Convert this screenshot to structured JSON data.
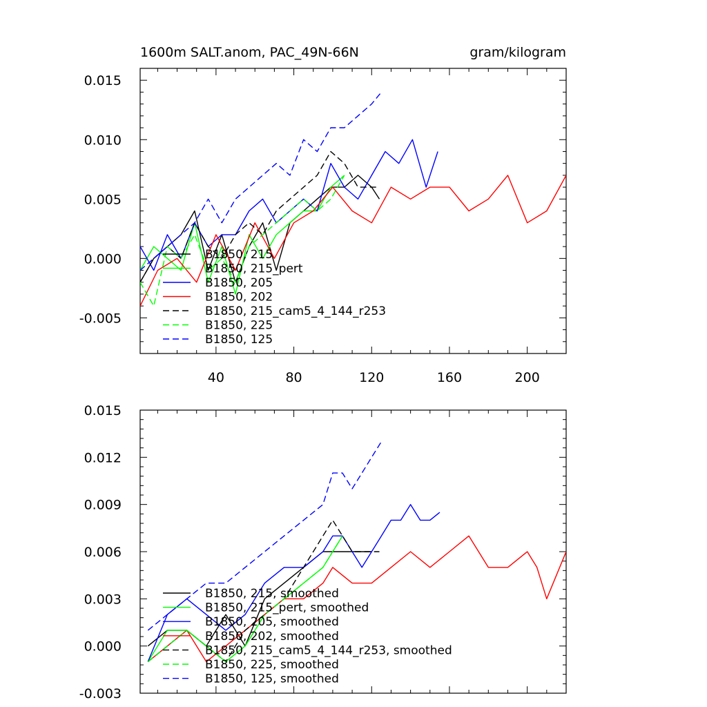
{
  "chart_data": [
    {
      "type": "line",
      "title": "1600m SALT.anom, PAC_49N-66N",
      "units": "gram/kilogram",
      "xlim": [
        1,
        220
      ],
      "ylim": [
        -0.008,
        0.016
      ],
      "xticks": [
        40,
        80,
        120,
        160,
        200
      ],
      "yticks": [
        -0.005,
        0.0,
        0.005,
        0.01,
        0.015
      ],
      "ytick_labels": [
        "-0.005",
        "0.000",
        "0.005",
        "0.010",
        "0.015"
      ],
      "legend_position": "lower-left, overlapping data",
      "series": [
        {
          "name": "B1850, 215",
          "color": "#000000",
          "dash": "solid",
          "x": [
            1,
            8,
            15,
            22,
            29,
            36,
            43,
            50,
            57,
            64,
            71,
            78,
            85,
            92,
            99,
            106,
            113,
            120,
            124
          ],
          "y": [
            -0.002,
            0.0,
            0.001,
            0.002,
            0.004,
            -0.001,
            0.002,
            -0.002,
            0.001,
            0.003,
            -0.001,
            0.003,
            0.004,
            0.005,
            0.006,
            0.006,
            0.007,
            0.006,
            0.005
          ]
        },
        {
          "name": "B1850, 215_pert",
          "color": "#00ff00",
          "dash": "solid",
          "x": [
            1,
            8,
            15,
            22,
            29,
            36,
            43,
            50,
            57,
            64,
            71,
            78,
            85,
            92,
            99,
            106
          ],
          "y": [
            -0.001,
            0.001,
            0.0,
            -0.001,
            0.003,
            -0.002,
            0.001,
            -0.003,
            0.002,
            0.0,
            0.002,
            0.003,
            0.004,
            0.004,
            0.006,
            0.007
          ]
        },
        {
          "name": "B1850, 205",
          "color": "#0000ff",
          "dash": "solid",
          "x": [
            1,
            8,
            15,
            22,
            29,
            36,
            43,
            50,
            57,
            64,
            71,
            78,
            85,
            92,
            99,
            106,
            113,
            120,
            127,
            134,
            141,
            148,
            154
          ],
          "y": [
            0.001,
            -0.001,
            0.002,
            0.0,
            0.003,
            0.001,
            0.002,
            0.002,
            0.004,
            0.005,
            0.003,
            0.004,
            0.005,
            0.004,
            0.008,
            0.006,
            0.005,
            0.007,
            0.009,
            0.008,
            0.01,
            0.006,
            0.009
          ]
        },
        {
          "name": "B1850, 202",
          "color": "#ff0000",
          "dash": "solid",
          "x": [
            1,
            10,
            20,
            30,
            40,
            50,
            60,
            70,
            80,
            90,
            100,
            110,
            120,
            130,
            140,
            150,
            160,
            170,
            180,
            190,
            200,
            210,
            220
          ],
          "y": [
            -0.004,
            -0.001,
            0.0,
            -0.002,
            0.002,
            -0.001,
            0.003,
            0.0,
            0.003,
            0.004,
            0.006,
            0.004,
            0.003,
            0.006,
            0.005,
            0.006,
            0.006,
            0.004,
            0.005,
            0.007,
            0.003,
            0.004,
            0.007
          ]
        },
        {
          "name": "B1850, 215_cam5_4_144_r253",
          "color": "#000000",
          "dash": "dashed",
          "x": [
            1,
            8,
            15,
            22,
            29,
            36,
            43,
            50,
            57,
            64,
            71,
            78,
            85,
            92,
            99,
            106,
            113,
            120,
            124
          ],
          "y": [
            -0.002,
            0.0,
            0.001,
            0.0,
            0.003,
            0.001,
            0.0,
            0.002,
            0.003,
            0.002,
            0.004,
            0.005,
            0.006,
            0.007,
            0.009,
            0.008,
            0.006,
            0.006,
            0.006
          ]
        },
        {
          "name": "B1850, 225",
          "color": "#00ff00",
          "dash": "dashed",
          "x": [
            1,
            8,
            15,
            22,
            29,
            36,
            43,
            50,
            57,
            64,
            71,
            78,
            85,
            92,
            99,
            106
          ],
          "y": [
            -0.002,
            -0.004,
            0.001,
            0.0,
            0.002,
            -0.001,
            0.0,
            -0.002,
            0.001,
            0.002,
            0.003,
            0.004,
            0.005,
            0.004,
            0.005,
            0.007
          ]
        },
        {
          "name": "B1850, 125",
          "color": "#0000ff",
          "dash": "dashed",
          "x": [
            1,
            8,
            15,
            22,
            29,
            36,
            43,
            50,
            57,
            64,
            71,
            78,
            85,
            92,
            99,
            106,
            113,
            120,
            125
          ],
          "y": [
            -0.001,
            0.0,
            0.001,
            0.002,
            0.003,
            0.005,
            0.003,
            0.005,
            0.006,
            0.007,
            0.008,
            0.007,
            0.01,
            0.009,
            0.011,
            0.011,
            0.012,
            0.013,
            0.014
          ]
        }
      ]
    },
    {
      "type": "line",
      "title": "",
      "xlim": [
        1,
        220
      ],
      "ylim": [
        -0.003,
        0.015
      ],
      "yticks": [
        -0.003,
        0.0,
        0.003,
        0.006,
        0.009,
        0.012,
        0.015
      ],
      "ytick_labels": [
        "-0.003",
        "0.000",
        "0.003",
        "0.006",
        "0.009",
        "0.012",
        "0.015"
      ],
      "legend_position": "lower-left, overlapping data",
      "series": [
        {
          "name": "B1850, 215, smoothed",
          "color": "#000000",
          "dash": "solid",
          "x": [
            5,
            15,
            25,
            35,
            45,
            55,
            65,
            75,
            85,
            95,
            100,
            105,
            110,
            115,
            120
          ],
          "y": [
            0.0,
            0.001,
            0.001,
            0.0,
            0.002,
            0.0,
            0.003,
            0.004,
            0.005,
            0.006,
            0.006,
            0.006,
            0.006,
            0.006,
            0.006
          ]
        },
        {
          "name": "B1850, 215_pert, smoothed",
          "color": "#00ff00",
          "dash": "solid",
          "x": [
            5,
            15,
            25,
            35,
            45,
            55,
            65,
            75,
            85,
            95,
            100,
            105
          ],
          "y": [
            -0.001,
            0.001,
            0.001,
            0.0,
            -0.001,
            0.0,
            0.002,
            0.003,
            0.004,
            0.005,
            0.006,
            0.007
          ]
        },
        {
          "name": "B1850, 205, smoothed",
          "color": "#0000ff",
          "dash": "solid",
          "x": [
            5,
            15,
            25,
            35,
            45,
            55,
            65,
            75,
            85,
            95,
            100,
            105,
            110,
            115,
            120,
            125,
            130,
            135,
            140,
            145,
            150,
            155
          ],
          "y": [
            -0.001,
            0.002,
            0.003,
            0.002,
            0.001,
            0.002,
            0.004,
            0.005,
            0.005,
            0.006,
            0.007,
            0.007,
            0.006,
            0.005,
            0.006,
            0.007,
            0.008,
            0.008,
            0.009,
            0.008,
            0.008,
            0.0085
          ]
        },
        {
          "name": "B1850, 202, smoothed",
          "color": "#ff0000",
          "dash": "solid",
          "x": [
            5,
            15,
            25,
            35,
            45,
            55,
            65,
            75,
            85,
            95,
            100,
            110,
            120,
            130,
            140,
            150,
            160,
            170,
            180,
            190,
            200,
            205,
            210,
            220
          ],
          "y": [
            -0.001,
            0.0,
            0.001,
            -0.001,
            0.0,
            0.001,
            0.002,
            0.003,
            0.003,
            0.004,
            0.005,
            0.004,
            0.004,
            0.005,
            0.006,
            0.005,
            0.006,
            0.007,
            0.005,
            0.005,
            0.006,
            0.005,
            0.003,
            0.006
          ]
        },
        {
          "name": "B1850, 215_cam5_4_144_r253, smoothed",
          "color": "#000000",
          "dash": "dashed",
          "x": [
            5,
            15,
            25,
            35,
            45,
            55,
            65,
            75,
            85,
            95,
            100,
            105,
            110,
            115,
            120,
            124
          ],
          "y": [
            -0.001,
            0.0,
            0.001,
            0.0,
            -0.001,
            0.001,
            0.002,
            0.003,
            0.005,
            0.007,
            0.008,
            0.007,
            0.006,
            0.006,
            0.006,
            0.006
          ]
        },
        {
          "name": "B1850, 225, smoothed",
          "color": "#00ff00",
          "dash": "dashed",
          "x": [
            5,
            15,
            25,
            35,
            45,
            55,
            65,
            75,
            85,
            95,
            100,
            105
          ],
          "y": [
            -0.001,
            0.0,
            0.001,
            0.0,
            -0.001,
            0.0,
            0.002,
            0.003,
            0.004,
            0.005,
            0.006,
            0.007
          ]
        },
        {
          "name": "B1850, 125, smoothed",
          "color": "#0000ff",
          "dash": "dashed",
          "x": [
            5,
            15,
            25,
            35,
            45,
            55,
            65,
            75,
            85,
            95,
            100,
            105,
            110,
            115,
            120,
            125
          ],
          "y": [
            0.001,
            0.002,
            0.003,
            0.004,
            0.004,
            0.005,
            0.006,
            0.007,
            0.008,
            0.009,
            0.011,
            0.011,
            0.01,
            0.011,
            0.012,
            0.013
          ]
        }
      ]
    }
  ]
}
